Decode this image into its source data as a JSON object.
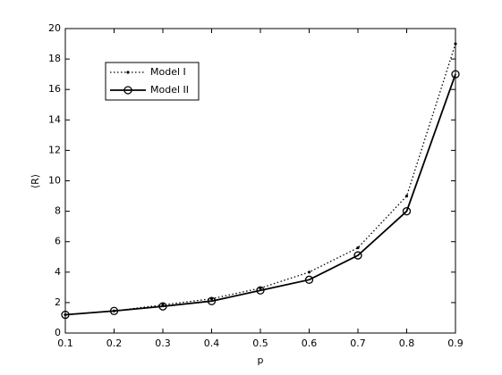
{
  "chart_data": {
    "type": "line",
    "x_label": "p",
    "y_label": "⟨R⟩",
    "x": [
      0.1,
      0.2,
      0.3,
      0.4,
      0.5,
      0.6,
      0.7,
      0.8,
      0.9
    ],
    "series": [
      {
        "name": "Model I",
        "color": "#000000",
        "style": "dotted",
        "marker": "dot",
        "values": [
          1.2,
          1.45,
          1.85,
          2.25,
          2.95,
          4.0,
          5.6,
          9.0,
          19.0
        ]
      },
      {
        "name": "Model II",
        "color": "#000000",
        "style": "solid",
        "marker": "circle",
        "values": [
          1.2,
          1.45,
          1.75,
          2.1,
          2.8,
          3.5,
          5.1,
          8.0,
          17.0
        ]
      }
    ],
    "xlim": [
      0.1,
      0.9
    ],
    "xticks": [
      0.1,
      0.2,
      0.3,
      0.4,
      0.5,
      0.6,
      0.7,
      0.8,
      0.9
    ],
    "ylim": [
      0,
      20
    ],
    "yticks": [
      0,
      2,
      4,
      6,
      8,
      10,
      12,
      14,
      16,
      18,
      20
    ],
    "grid": false,
    "legend": "upper-left"
  }
}
